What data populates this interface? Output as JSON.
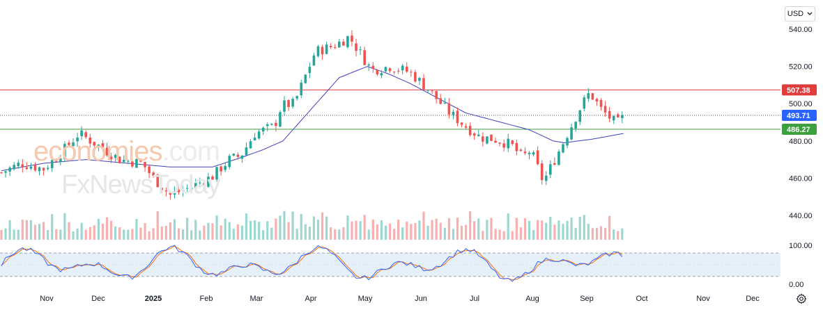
{
  "toolbar": {
    "currency_label": "USD"
  },
  "watermark": {
    "brand_line1": "economies",
    "brand_line1_suffix": ".com",
    "brand_line2": "FxNewsToday"
  },
  "colors": {
    "up": "#26a69a",
    "down": "#ef5350",
    "ma": "#3f3fbf",
    "resistance": "#e03c3c",
    "support": "#3e9f3e",
    "last": "#2962ff",
    "stoch_k": "#2962ff",
    "stoch_d": "#ff6d00",
    "stoch_band": "#e6f0fb"
  },
  "chart_data": {
    "type": "candlestick",
    "x_axis_labels": [
      "Nov",
      "Dec",
      "2025",
      "Feb",
      "Mar",
      "Apr",
      "May",
      "Jun",
      "Jul",
      "Aug",
      "Sep",
      "Oct",
      "Nov",
      "Dec"
    ],
    "y_axis_labels": [
      "540.00",
      "520.00",
      "500.00",
      "480.00",
      "460.00",
      "440.00"
    ],
    "ylim": [
      430,
      545
    ],
    "horizontal_levels": [
      {
        "label": "507.38",
        "value": 507.38,
        "color": "resistance"
      },
      {
        "label": "493.71",
        "value": 493.71,
        "color": "last",
        "style": "dotted"
      },
      {
        "label": "486.27",
        "value": 486.27,
        "color": "support"
      }
    ],
    "price_path_days": [
      0,
      14,
      30,
      43,
      55,
      68,
      84,
      100,
      108,
      120,
      134,
      150,
      162,
      170,
      180,
      194,
      199,
      208,
      223,
      236,
      247,
      263,
      276,
      290,
      303,
      317,
      328,
      340,
      350,
      362,
      370,
      376,
      385,
      397,
      412,
      418,
      426,
      437,
      442
    ],
    "price_path_values": [
      463,
      468,
      465,
      474,
      484,
      478,
      470,
      468,
      460,
      451,
      455,
      461,
      470,
      472,
      484,
      488,
      499,
      500,
      528,
      531,
      536,
      518,
      520,
      517,
      508,
      496,
      489,
      482,
      481,
      478,
      471,
      475,
      458,
      476,
      499,
      506,
      497,
      489,
      493
    ],
    "moving_average": {
      "start_day": 0,
      "days": [
        0,
        30,
        60,
        90,
        120,
        150,
        170,
        185,
        200,
        220,
        240,
        260,
        275,
        290,
        310,
        330,
        355,
        375,
        392,
        400,
        420,
        442
      ],
      "values": [
        464,
        468,
        470,
        468,
        466,
        466,
        471,
        475,
        480,
        497,
        514,
        520,
        516,
        511,
        503,
        495,
        490,
        486,
        480,
        479,
        481,
        484
      ]
    },
    "stochastic": {
      "levels": [
        "100.00",
        "0.00"
      ],
      "band": [
        20,
        80
      ],
      "ylim": [
        0,
        100
      ]
    }
  }
}
